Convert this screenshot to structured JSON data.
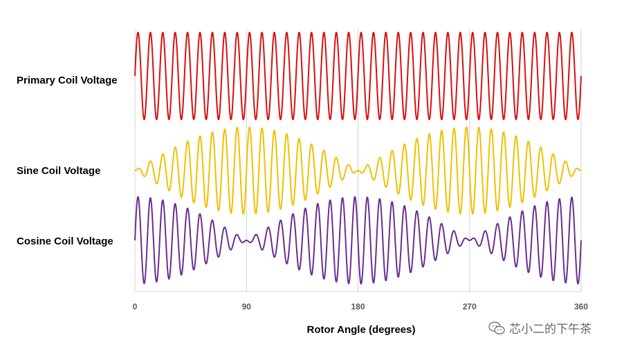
{
  "chart_data": {
    "type": "line",
    "xlabel": "Rotor Angle (degrees)",
    "xlim": [
      0,
      360
    ],
    "xticks": [
      0,
      90,
      180,
      270,
      360
    ],
    "grid": "vertical",
    "carrier_cycles": 36,
    "series": [
      {
        "name": "Primary Coil Voltage",
        "color": "#d80f0f",
        "envelope": "constant",
        "amplitude": 1.0
      },
      {
        "name": "Sine Coil Voltage",
        "color": "#f0c000",
        "envelope": "sin(angle)",
        "amplitude": 1.0
      },
      {
        "name": "Cosine Coil Voltage",
        "color": "#6a2d8f",
        "envelope": "cos(angle)",
        "amplitude": 1.0
      }
    ]
  },
  "watermark": {
    "text": "芯小二的下午茶"
  }
}
